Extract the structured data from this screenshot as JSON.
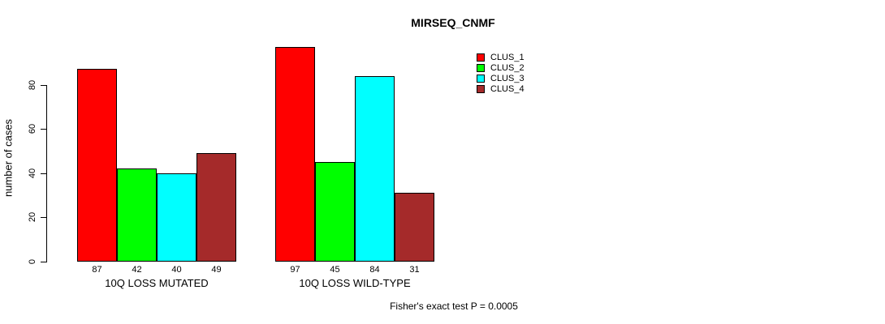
{
  "title": "MIRSEQ_CNMF",
  "footer": "Fisher's exact test P = 0.0005",
  "chart_data": {
    "type": "bar",
    "title": "MIRSEQ_CNMF",
    "xlabel": "",
    "ylabel": "number of cases",
    "categories": [
      "10Q LOSS MUTATED",
      "10Q LOSS WILD-TYPE"
    ],
    "series": [
      {
        "name": "CLUS_1",
        "color": "#FF0000",
        "values": [
          87,
          97
        ]
      },
      {
        "name": "CLUS_2",
        "color": "#00FF00",
        "values": [
          42,
          45
        ]
      },
      {
        "name": "CLUS_3",
        "color": "#00FFFF",
        "values": [
          40,
          84
        ]
      },
      {
        "name": "CLUS_4",
        "color": "#A52A2A",
        "values": [
          49,
          31
        ]
      }
    ],
    "yticks": [
      0,
      20,
      40,
      60,
      80
    ],
    "ylim": [
      0,
      97
    ],
    "grid": "off",
    "legend_position": "top-right",
    "bar_value_labels": true,
    "annotation": "Fisher's exact test P = 0.0005"
  }
}
